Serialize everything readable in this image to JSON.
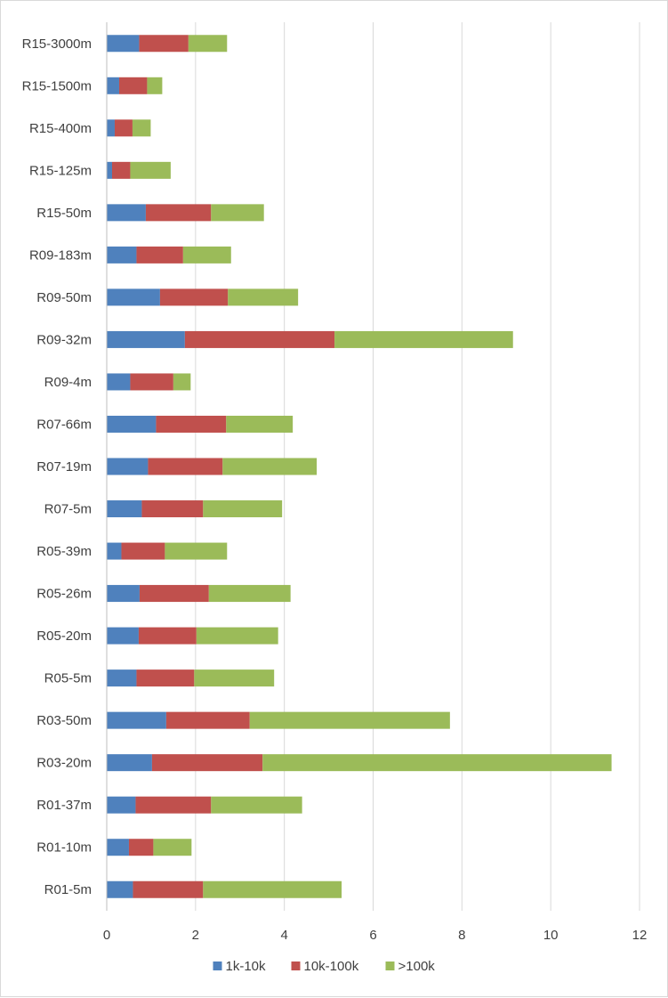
{
  "chart_data": {
    "type": "bar",
    "orientation": "horizontal",
    "stacked": true,
    "categories": [
      "R15-3000m",
      "R15-1500m",
      "R15-400m",
      "R15-125m",
      "R15-50m",
      "R09-183m",
      "R09-50m",
      "R09-32m",
      "R09-4m",
      "R07-66m",
      "R07-19m",
      "R07-5m",
      "R05-39m",
      "R05-26m",
      "R05-20m",
      "R05-5m",
      "R03-50m",
      "R03-20m",
      "R01-37m",
      "R01-10m",
      "R01-5m"
    ],
    "series": [
      {
        "name": "1k-10k",
        "color": "#4f81bd",
        "values": [
          0.73,
          0.28,
          0.18,
          0.12,
          0.88,
          0.67,
          1.2,
          1.76,
          0.53,
          1.11,
          0.93,
          0.79,
          0.33,
          0.74,
          0.72,
          0.67,
          1.34,
          1.02,
          0.65,
          0.5,
          0.59
        ]
      },
      {
        "name": "10k-100k",
        "color": "#c0504d",
        "values": [
          1.11,
          0.63,
          0.4,
          0.41,
          1.47,
          1.05,
          1.53,
          3.37,
          0.97,
          1.58,
          1.68,
          1.38,
          0.98,
          1.56,
          1.3,
          1.3,
          1.88,
          2.49,
          1.7,
          0.55,
          1.58
        ]
      },
      {
        "name": ">100k",
        "color": "#9bbb59",
        "values": [
          0.87,
          0.34,
          0.41,
          0.91,
          1.19,
          1.08,
          1.58,
          4.02,
          0.39,
          1.5,
          2.12,
          1.78,
          1.4,
          1.84,
          1.84,
          1.8,
          4.51,
          7.86,
          2.05,
          0.86,
          3.12
        ]
      }
    ],
    "xlim": [
      0,
      12
    ],
    "xticks": [
      "0",
      "2",
      "4",
      "6",
      "8",
      "10",
      "12"
    ],
    "grid": true,
    "legend_position": "bottom"
  }
}
